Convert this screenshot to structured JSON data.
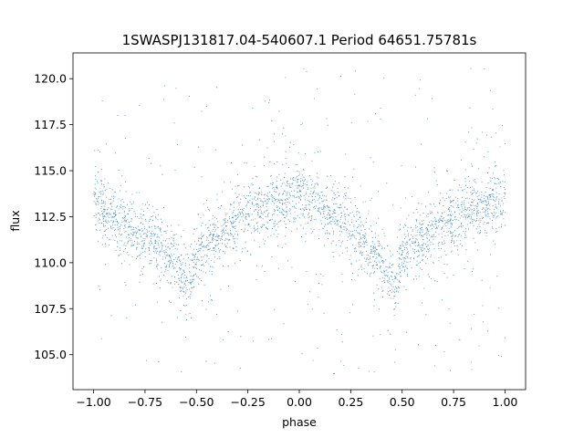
{
  "chart_data": {
    "type": "scatter",
    "title": "1SWASPJ131817.04-540607.1 Period 64651.75781s",
    "xlabel": "phase",
    "ylabel": "flux",
    "xlim": [
      -1.1,
      1.1
    ],
    "ylim": [
      103.1,
      121.4
    ],
    "xticks": [
      -1.0,
      -0.75,
      -0.5,
      -0.25,
      0.0,
      0.25,
      0.5,
      0.75,
      1.0
    ],
    "xtick_labels": [
      "−1.00",
      "−0.75",
      "−0.50",
      "−0.25",
      "0.00",
      "0.25",
      "0.50",
      "0.75",
      "1.00"
    ],
    "yticks": [
      105.0,
      107.5,
      110.0,
      112.5,
      115.0,
      117.5,
      120.0
    ],
    "ytick_labels": [
      "105.0",
      "107.5",
      "110.0",
      "112.5",
      "115.0",
      "117.5",
      "120.0"
    ],
    "grid": false,
    "point_color": "#1f77b4",
    "light_curve_profile": {
      "phase": [
        -1.0,
        -0.75,
        -0.6,
        -0.54,
        -0.5,
        -0.25,
        -0.05,
        0.0,
        0.25,
        0.4,
        0.46,
        0.5,
        0.75,
        1.0
      ],
      "flux": [
        113.2,
        111.5,
        110.0,
        108.5,
        110.5,
        112.8,
        113.6,
        113.8,
        112.0,
        110.2,
        108.5,
        110.5,
        112.5,
        113.4
      ]
    }
  }
}
